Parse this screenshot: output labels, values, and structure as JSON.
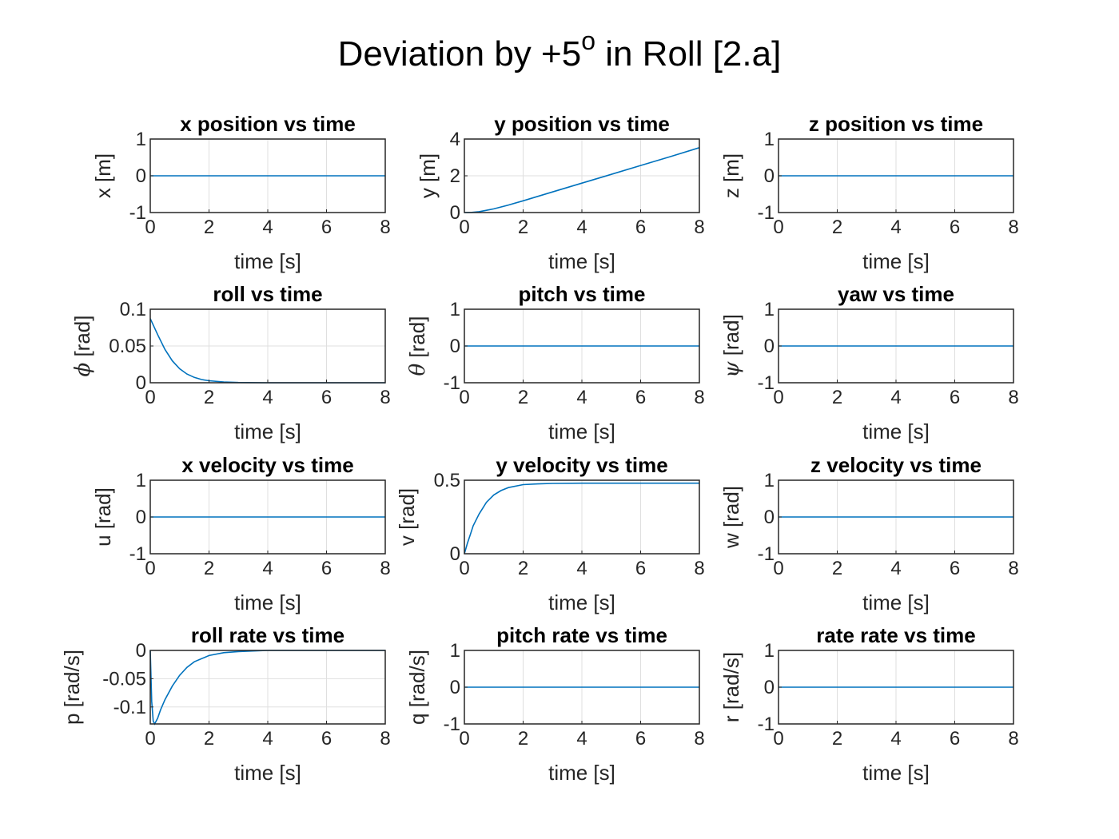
{
  "figure": {
    "title_main": "Deviation by +5",
    "title_sup": "o",
    "title_tail": " in Roll [2.a]"
  },
  "chart_data": [
    {
      "id": "x-position",
      "type": "line",
      "title": "x position vs time",
      "xlabel": "time [s]",
      "ylabel": "x [m]",
      "xlim": [
        0,
        8
      ],
      "ylim": [
        -1,
        1
      ],
      "xticks": [
        0,
        2,
        4,
        6,
        8
      ],
      "yticks": [
        -1,
        0,
        1
      ],
      "ytick_labels": [
        "-1",
        "0",
        "1"
      ],
      "grid": true,
      "series": [
        {
          "x": [
            0,
            8
          ],
          "y": [
            0,
            0
          ]
        }
      ]
    },
    {
      "id": "y-position",
      "type": "line",
      "title": "y position vs time",
      "xlabel": "time [s]",
      "ylabel": "y [m]",
      "xlim": [
        0,
        8
      ],
      "ylim": [
        0,
        4
      ],
      "xticks": [
        0,
        2,
        4,
        6,
        8
      ],
      "yticks": [
        0,
        2,
        4
      ],
      "ytick_labels": [
        "0",
        "2",
        "4"
      ],
      "grid": true,
      "series": [
        {
          "x": [
            0,
            0.25,
            0.5,
            0.75,
            1,
            1.5,
            2,
            3,
            4,
            5,
            6,
            7,
            8
          ],
          "y": [
            0,
            0.01,
            0.05,
            0.12,
            0.2,
            0.41,
            0.64,
            1.12,
            1.6,
            2.08,
            2.56,
            3.04,
            3.53
          ]
        }
      ]
    },
    {
      "id": "z-position",
      "type": "line",
      "title": "z position vs time",
      "xlabel": "time [s]",
      "ylabel": "z [m]",
      "xlim": [
        0,
        8
      ],
      "ylim": [
        -1,
        1
      ],
      "xticks": [
        0,
        2,
        4,
        6,
        8
      ],
      "yticks": [
        -1,
        0,
        1
      ],
      "ytick_labels": [
        "-1",
        "0",
        "1"
      ],
      "grid": true,
      "series": [
        {
          "x": [
            0,
            8
          ],
          "y": [
            0,
            0
          ]
        }
      ]
    },
    {
      "id": "roll",
      "type": "line",
      "title": "roll vs time",
      "xlabel": "time [s]",
      "ylabel": "ϕ [rad]",
      "xlim": [
        0,
        8
      ],
      "ylim": [
        0,
        0.1
      ],
      "xticks": [
        0,
        2,
        4,
        6,
        8
      ],
      "yticks": [
        0,
        0.05,
        0.1
      ],
      "ytick_labels": [
        "0",
        "0.05",
        "0.1"
      ],
      "grid": true,
      "series": [
        {
          "x": [
            0,
            0.25,
            0.5,
            0.75,
            1,
            1.25,
            1.5,
            1.75,
            2,
            2.5,
            3,
            4,
            5,
            6,
            8
          ],
          "y": [
            0.0873,
            0.0655,
            0.0453,
            0.0298,
            0.019,
            0.0118,
            0.0073,
            0.0044,
            0.0027,
            0.001,
            0.0003,
            0,
            0,
            0,
            0
          ]
        }
      ]
    },
    {
      "id": "pitch",
      "type": "line",
      "title": "pitch vs time",
      "xlabel": "time [s]",
      "ylabel": "θ [rad]",
      "xlim": [
        0,
        8
      ],
      "ylim": [
        -1,
        1
      ],
      "xticks": [
        0,
        2,
        4,
        6,
        8
      ],
      "yticks": [
        -1,
        0,
        1
      ],
      "ytick_labels": [
        "-1",
        "0",
        "1"
      ],
      "grid": true,
      "series": [
        {
          "x": [
            0,
            8
          ],
          "y": [
            0,
            0
          ]
        }
      ]
    },
    {
      "id": "yaw",
      "type": "line",
      "title": "yaw vs time",
      "xlabel": "time [s]",
      "ylabel": "ψ [rad]",
      "xlim": [
        0,
        8
      ],
      "ylim": [
        -1,
        1
      ],
      "xticks": [
        0,
        2,
        4,
        6,
        8
      ],
      "yticks": [
        -1,
        0,
        1
      ],
      "ytick_labels": [
        "-1",
        "0",
        "1"
      ],
      "grid": true,
      "series": [
        {
          "x": [
            0,
            8
          ],
          "y": [
            0,
            0
          ]
        }
      ]
    },
    {
      "id": "x-velocity",
      "type": "line",
      "title": "x velocity vs time",
      "xlabel": "time [s]",
      "ylabel": "u [rad]",
      "xlim": [
        0,
        8
      ],
      "ylim": [
        -1,
        1
      ],
      "xticks": [
        0,
        2,
        4,
        6,
        8
      ],
      "yticks": [
        -1,
        0,
        1
      ],
      "ytick_labels": [
        "-1",
        "0",
        "1"
      ],
      "grid": true,
      "series": [
        {
          "x": [
            0,
            8
          ],
          "y": [
            0,
            0
          ]
        }
      ]
    },
    {
      "id": "y-velocity",
      "type": "line",
      "title": "y velocity vs time",
      "xlabel": "time [s]",
      "ylabel": "v [rad]",
      "xlim": [
        0,
        8
      ],
      "ylim": [
        0,
        0.5
      ],
      "xticks": [
        0,
        2,
        4,
        6,
        8
      ],
      "yticks": [
        0,
        0.5
      ],
      "ytick_labels": [
        "0",
        "0.5"
      ],
      "grid": true,
      "series": [
        {
          "x": [
            0,
            0.1,
            0.2,
            0.3,
            0.5,
            0.75,
            1,
            1.25,
            1.5,
            2,
            2.5,
            3,
            4,
            5,
            6,
            8
          ],
          "y": [
            0,
            0.07,
            0.13,
            0.19,
            0.27,
            0.35,
            0.4,
            0.43,
            0.45,
            0.47,
            0.475,
            0.478,
            0.48,
            0.48,
            0.48,
            0.48
          ]
        }
      ]
    },
    {
      "id": "z-velocity",
      "type": "line",
      "title": "z velocity vs time",
      "xlabel": "time [s]",
      "ylabel": "w [rad]",
      "xlim": [
        0,
        8
      ],
      "ylim": [
        -1,
        1
      ],
      "xticks": [
        0,
        2,
        4,
        6,
        8
      ],
      "yticks": [
        -1,
        0,
        1
      ],
      "ytick_labels": [
        "-1",
        "0",
        "1"
      ],
      "grid": true,
      "series": [
        {
          "x": [
            0,
            8
          ],
          "y": [
            0,
            0
          ]
        }
      ]
    },
    {
      "id": "roll-rate",
      "type": "line",
      "title": "roll rate vs time",
      "xlabel": "time [s]",
      "ylabel": "p [rad/s]",
      "xlim": [
        0,
        8
      ],
      "ylim": [
        -0.13,
        0
      ],
      "xticks": [
        0,
        2,
        4,
        6,
        8
      ],
      "yticks": [
        -0.1,
        -0.05,
        0
      ],
      "ytick_labels": [
        "-0.1",
        "-0.05",
        "0"
      ],
      "grid": true,
      "series": [
        {
          "x": [
            0,
            0.05,
            0.1,
            0.15,
            0.25,
            0.35,
            0.5,
            0.75,
            1,
            1.25,
            1.5,
            2,
            2.5,
            3,
            4,
            8
          ],
          "y": [
            0,
            -0.09,
            -0.125,
            -0.13,
            -0.12,
            -0.105,
            -0.087,
            -0.063,
            -0.044,
            -0.03,
            -0.02,
            -0.009,
            -0.004,
            -0.002,
            0,
            0
          ]
        }
      ]
    },
    {
      "id": "pitch-rate",
      "type": "line",
      "title": "pitch rate vs time",
      "xlabel": "time [s]",
      "ylabel": "q [rad/s]",
      "xlim": [
        0,
        8
      ],
      "ylim": [
        -1,
        1
      ],
      "xticks": [
        0,
        2,
        4,
        6,
        8
      ],
      "yticks": [
        -1,
        0,
        1
      ],
      "ytick_labels": [
        "-1",
        "0",
        "1"
      ],
      "grid": true,
      "series": [
        {
          "x": [
            0,
            8
          ],
          "y": [
            0,
            0
          ]
        }
      ]
    },
    {
      "id": "yaw-rate",
      "type": "line",
      "title": "rate rate vs time",
      "xlabel": "time [s]",
      "ylabel": "r [rad/s]",
      "xlim": [
        0,
        8
      ],
      "ylim": [
        -1,
        1
      ],
      "xticks": [
        0,
        2,
        4,
        6,
        8
      ],
      "yticks": [
        -1,
        0,
        1
      ],
      "ytick_labels": [
        "-1",
        "0",
        "1"
      ],
      "grid": true,
      "series": [
        {
          "x": [
            0,
            8
          ],
          "y": [
            0,
            0
          ]
        }
      ]
    }
  ]
}
